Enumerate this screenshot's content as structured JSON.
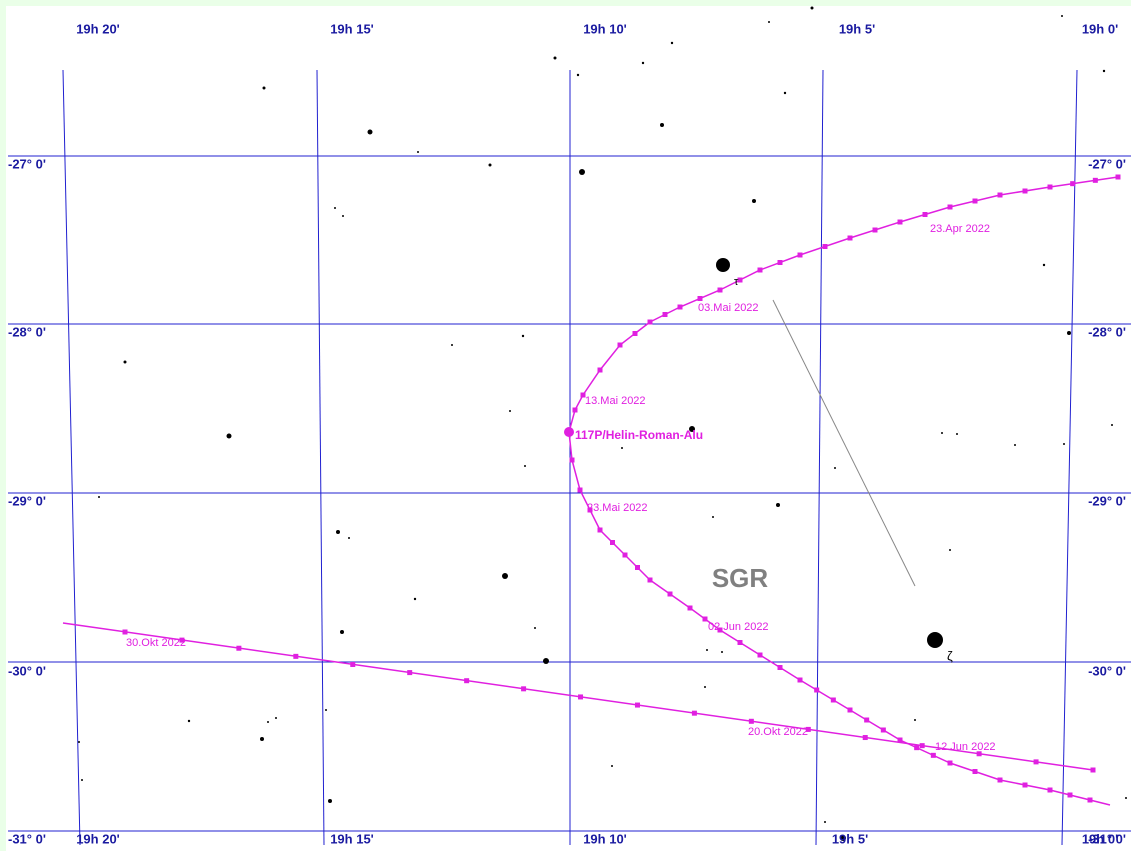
{
  "ra_labels_top": [
    "19h 20'",
    "19h 15'",
    "19h 10'",
    "19h 5'",
    "19h 0'"
  ],
  "ra_labels_bottom": [
    "19h 20'",
    "19h 15'",
    "19h 10'",
    "19h 5'",
    "19h 0'"
  ],
  "dec_labels_left": [
    "-27° 0'",
    "-28° 0'",
    "-29° 0'",
    "-30° 0'",
    "-31° 0'"
  ],
  "dec_labels_right": [
    "-27° 0'",
    "-28° 0'",
    "-29° 0'",
    "-30° 0'",
    "-31° 0'"
  ],
  "constellation": "SGR",
  "comet": "117P/Helin-Roman-Alu",
  "star_names": [
    "τ",
    "ζ"
  ],
  "dates": [
    "23.Apr 2022",
    "03.Mai 2022",
    "13.Mai 2022",
    "23.Mai 2022",
    "02.Jun 2022",
    "12.Jun 2022",
    "20.Okt 2022",
    "30.Okt 2022"
  ]
}
